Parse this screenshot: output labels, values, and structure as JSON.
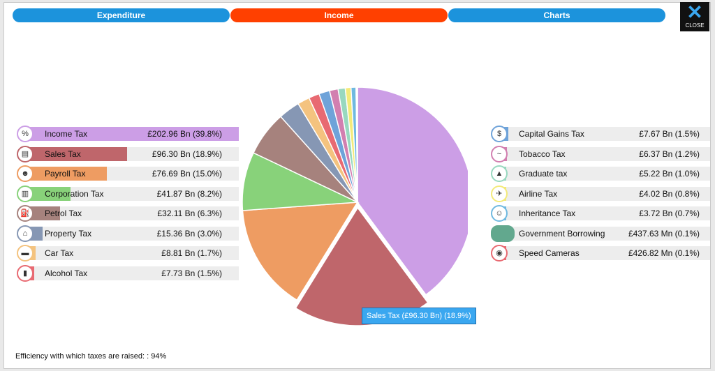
{
  "tabs": {
    "expenditure": "Expenditure",
    "income": "Income",
    "charts": "Charts"
  },
  "close_label": "CLOSE",
  "efficiency_text": "Efficiency with which taxes are raised: : 94%",
  "tooltip": "Sales Tax (£96.30 Bn) (18.9%)",
  "chart_data": {
    "type": "pie",
    "unit": "% of income",
    "slices": [
      {
        "name": "Income Tax",
        "value_text": "£202.96 Bn (39.8%)",
        "percent": 39.8,
        "color": "#cc9ee6",
        "icon": "percent-icon"
      },
      {
        "name": "Sales Tax",
        "value_text": "£96.30 Bn (18.9%)",
        "percent": 18.9,
        "color": "#bf666b",
        "icon": "receipt-icon"
      },
      {
        "name": "Payroll Tax",
        "value_text": "£76.69 Bn (15.0%)",
        "percent": 15.0,
        "color": "#ee9c62",
        "icon": "worker-icon"
      },
      {
        "name": "Corporation Tax",
        "value_text": "£41.87 Bn (8.2%)",
        "percent": 8.2,
        "color": "#88d27a",
        "icon": "building-icon"
      },
      {
        "name": "Petrol Tax",
        "value_text": "£32.11 Bn (6.3%)",
        "percent": 6.3,
        "color": "#a6827d",
        "icon": "fuel-icon"
      },
      {
        "name": "Property Tax",
        "value_text": "£15.36 Bn (3.0%)",
        "percent": 3.0,
        "color": "#8697b4",
        "icon": "house-money-icon"
      },
      {
        "name": "Car Tax",
        "value_text": "£8.81 Bn (1.7%)",
        "percent": 1.7,
        "color": "#f4c37f",
        "icon": "car-icon"
      },
      {
        "name": "Alcohol Tax",
        "value_text": "£7.73 Bn (1.5%)",
        "percent": 1.5,
        "color": "#e86a72",
        "icon": "bottle-icon"
      },
      {
        "name": "Capital Gains Tax",
        "value_text": "£7.67 Bn (1.5%)",
        "percent": 1.5,
        "color": "#6fa3d9",
        "icon": "money-bag-icon"
      },
      {
        "name": "Tobacco Tax",
        "value_text": "£6.37 Bn (1.2%)",
        "percent": 1.2,
        "color": "#d27fb0",
        "icon": "cigarette-icon"
      },
      {
        "name": "Graduate tax",
        "value_text": "£5.22 Bn (1.0%)",
        "percent": 1.0,
        "color": "#98d8bf",
        "icon": "graduation-cap-icon"
      },
      {
        "name": "Airline Tax",
        "value_text": "£4.02 Bn (0.8%)",
        "percent": 0.8,
        "color": "#f3ea7a",
        "icon": "airplane-icon"
      },
      {
        "name": "Inheritance Tax",
        "value_text": "£3.72 Bn (0.7%)",
        "percent": 0.7,
        "color": "#6fb9e0",
        "icon": "family-icon"
      },
      {
        "name": "Government Borrowing",
        "value_text": "£437.63 Mn (0.1%)",
        "percent": 0.1,
        "color": "#62a88e",
        "icon": ""
      },
      {
        "name": "Speed Cameras",
        "value_text": "£426.82 Mn (0.1%)",
        "percent": 0.1,
        "color": "#e86a72",
        "icon": "camera-icon"
      }
    ]
  }
}
